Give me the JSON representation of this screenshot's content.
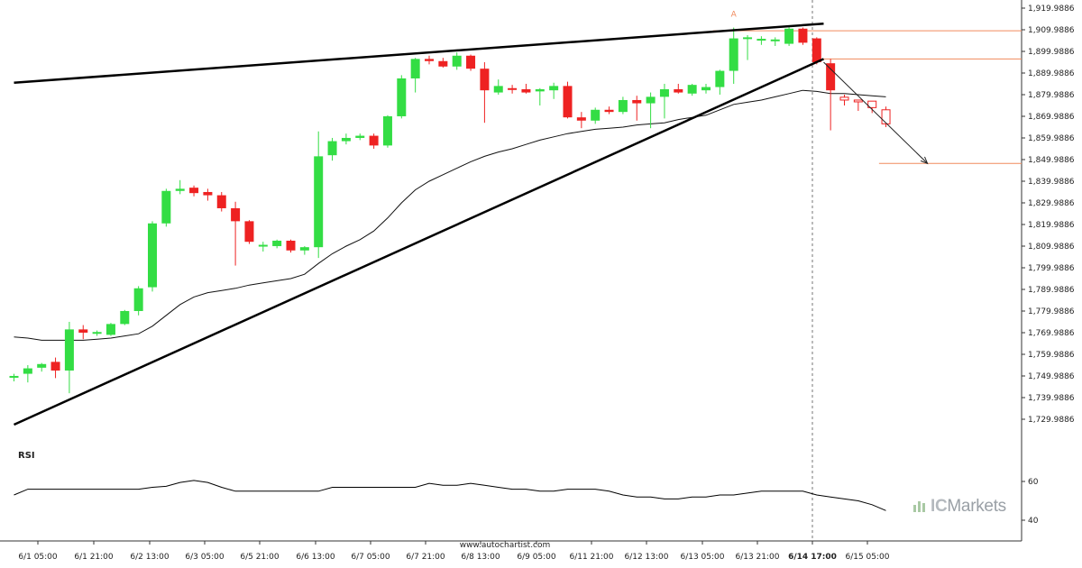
{
  "chart_data": {
    "type": "candlestick",
    "ylim": [
      1723,
      1921
    ],
    "y_ticks": [
      "1,919.9886",
      "1,909.9886",
      "1,899.9886",
      "1,889.9886",
      "1,879.9886",
      "1,869.9886",
      "1,859.9886",
      "1,849.9886",
      "1,839.9886",
      "1,829.9886",
      "1,819.9886",
      "1,809.9886",
      "1,799.9886",
      "1,789.9886",
      "1,779.9886",
      "1,769.9886",
      "1,759.9886",
      "1,749.9886",
      "1,739.9886",
      "1,729.9886"
    ],
    "x_ticks": [
      "6/1 05:00",
      "6/1 21:00",
      "6/2 13:00",
      "6/3 05:00",
      "6/5 21:00",
      "6/6 13:00",
      "6/7 05:00",
      "6/7 21:00",
      "6/8 13:00",
      "6/9 05:00",
      "6/11 21:00",
      "6/12 13:00",
      "6/13 05:00",
      "6/13 21:00",
      "6/14 17:00",
      "6/15 05:00"
    ],
    "highlight_x_tick": "6/14 17:00",
    "candles": [
      {
        "o": 1749.5,
        "h": 1751.0,
        "l": 1747.5,
        "c": 1750.0
      },
      {
        "o": 1751.0,
        "h": 1755.0,
        "l": 1747.0,
        "c": 1753.5
      },
      {
        "o": 1753.8,
        "h": 1756.0,
        "l": 1752.0,
        "c": 1755.5
      },
      {
        "o": 1756.5,
        "h": 1758.5,
        "l": 1749.0,
        "c": 1752.5
      },
      {
        "o": 1752.5,
        "h": 1775.0,
        "l": 1742.0,
        "c": 1771.5
      },
      {
        "o": 1771.5,
        "h": 1773.5,
        "l": 1767.0,
        "c": 1770.0
      },
      {
        "o": 1769.7,
        "h": 1771.0,
        "l": 1768.5,
        "c": 1770.3
      },
      {
        "o": 1769.0,
        "h": 1774.5,
        "l": 1768.5,
        "c": 1774.0
      },
      {
        "o": 1774.0,
        "h": 1780.5,
        "l": 1773.5,
        "c": 1780.0
      },
      {
        "o": 1780.0,
        "h": 1791.5,
        "l": 1778.0,
        "c": 1790.5
      },
      {
        "o": 1791.0,
        "h": 1821.5,
        "l": 1789.0,
        "c": 1820.5
      },
      {
        "o": 1820.5,
        "h": 1836.5,
        "l": 1819.0,
        "c": 1835.5
      },
      {
        "o": 1835.5,
        "h": 1840.5,
        "l": 1834.0,
        "c": 1836.5
      },
      {
        "o": 1837.0,
        "h": 1838.0,
        "l": 1833.0,
        "c": 1834.5
      },
      {
        "o": 1835.0,
        "h": 1836.5,
        "l": 1831.0,
        "c": 1833.5
      },
      {
        "o": 1833.5,
        "h": 1835.0,
        "l": 1826.0,
        "c": 1827.5
      },
      {
        "o": 1827.5,
        "h": 1830.5,
        "l": 1801.0,
        "c": 1821.5
      },
      {
        "o": 1821.5,
        "h": 1822.0,
        "l": 1811.0,
        "c": 1812.0
      },
      {
        "o": 1810.0,
        "h": 1812.0,
        "l": 1807.5,
        "c": 1810.6
      },
      {
        "o": 1810.0,
        "h": 1813.0,
        "l": 1809.0,
        "c": 1812.5
      },
      {
        "o": 1812.5,
        "h": 1813.0,
        "l": 1807.0,
        "c": 1808.0
      },
      {
        "o": 1808.0,
        "h": 1810.0,
        "l": 1806.0,
        "c": 1809.5
      },
      {
        "o": 1809.5,
        "h": 1863.0,
        "l": 1804.5,
        "c": 1851.5
      },
      {
        "o": 1852.0,
        "h": 1860.0,
        "l": 1849.5,
        "c": 1858.5
      },
      {
        "o": 1858.5,
        "h": 1862.0,
        "l": 1857.0,
        "c": 1860.0
      },
      {
        "o": 1860.0,
        "h": 1862.0,
        "l": 1859.0,
        "c": 1861.0
      },
      {
        "o": 1861.0,
        "h": 1862.0,
        "l": 1855.0,
        "c": 1856.5
      },
      {
        "o": 1856.5,
        "h": 1870.5,
        "l": 1855.5,
        "c": 1870.0
      },
      {
        "o": 1870.0,
        "h": 1889.0,
        "l": 1869.0,
        "c": 1887.5
      },
      {
        "o": 1887.5,
        "h": 1897.0,
        "l": 1881.0,
        "c": 1896.5
      },
      {
        "o": 1896.5,
        "h": 1898.0,
        "l": 1894.0,
        "c": 1895.5
      },
      {
        "o": 1895.5,
        "h": 1897.0,
        "l": 1892.5,
        "c": 1893.0
      },
      {
        "o": 1893.0,
        "h": 1899.5,
        "l": 1891.5,
        "c": 1898.0
      },
      {
        "o": 1898.0,
        "h": 1898.5,
        "l": 1891.0,
        "c": 1892.0
      },
      {
        "o": 1892.0,
        "h": 1895.0,
        "l": 1867.0,
        "c": 1882.0
      },
      {
        "o": 1881.0,
        "h": 1887.0,
        "l": 1880.0,
        "c": 1884.0
      },
      {
        "o": 1883.0,
        "h": 1884.5,
        "l": 1880.5,
        "c": 1882.5
      },
      {
        "o": 1882.5,
        "h": 1885.0,
        "l": 1880.5,
        "c": 1881.0
      },
      {
        "o": 1881.5,
        "h": 1883.0,
        "l": 1875.0,
        "c": 1882.5
      },
      {
        "o": 1882.0,
        "h": 1885.5,
        "l": 1878.0,
        "c": 1884.0
      },
      {
        "o": 1884.0,
        "h": 1886.0,
        "l": 1869.0,
        "c": 1869.5
      },
      {
        "o": 1869.5,
        "h": 1872.0,
        "l": 1864.5,
        "c": 1868.0
      },
      {
        "o": 1868.0,
        "h": 1874.0,
        "l": 1866.5,
        "c": 1873.0
      },
      {
        "o": 1873.0,
        "h": 1874.5,
        "l": 1871.0,
        "c": 1872.0
      },
      {
        "o": 1872.0,
        "h": 1879.0,
        "l": 1871.0,
        "c": 1877.5
      },
      {
        "o": 1877.5,
        "h": 1879.5,
        "l": 1868.0,
        "c": 1876.0
      },
      {
        "o": 1876.0,
        "h": 1881.0,
        "l": 1864.5,
        "c": 1879.0
      },
      {
        "o": 1879.0,
        "h": 1885.0,
        "l": 1869.0,
        "c": 1882.5
      },
      {
        "o": 1882.5,
        "h": 1885.0,
        "l": 1880.5,
        "c": 1881.0
      },
      {
        "o": 1880.5,
        "h": 1885.0,
        "l": 1879.5,
        "c": 1884.5
      },
      {
        "o": 1882.0,
        "h": 1885.0,
        "l": 1880.5,
        "c": 1883.5
      },
      {
        "o": 1883.5,
        "h": 1891.5,
        "l": 1880.0,
        "c": 1891.0
      },
      {
        "o": 1891.0,
        "h": 1911.0,
        "l": 1885.0,
        "c": 1906.0
      },
      {
        "o": 1906.0,
        "h": 1907.5,
        "l": 1896.0,
        "c": 1906.5
      },
      {
        "o": 1905.5,
        "h": 1907.0,
        "l": 1903.0,
        "c": 1905.8
      },
      {
        "o": 1905.0,
        "h": 1906.5,
        "l": 1902.5,
        "c": 1905.5
      },
      {
        "o": 1903.5,
        "h": 1911.5,
        "l": 1902.5,
        "c": 1910.5
      },
      {
        "o": 1910.5,
        "h": 1911.0,
        "l": 1903.0,
        "c": 1904.0
      },
      {
        "o": 1906.0,
        "h": 1906.5,
        "l": 1894.0,
        "c": 1895.0
      },
      {
        "o": 1894.5,
        "h": 1896.5,
        "l": 1863.5,
        "c": 1882.0
      },
      {
        "o": 1877.5,
        "h": 1880.0,
        "l": 1875.0,
        "c": 1878.8
      },
      {
        "o": 1877.0,
        "h": 1877.5,
        "l": 1872.5,
        "c": 1877.5
      },
      {
        "o": 1874.0,
        "h": 1877.0,
        "l": 1871.5,
        "c": 1877.0
      },
      {
        "o": 1873.0,
        "h": 1874.5,
        "l": 1865.0,
        "c": 1866.5
      }
    ],
    "projected_from_index": 59,
    "moving_average": [
      1768,
      1767.5,
      1766.5,
      1766.5,
      1766.5,
      1766.5,
      1767,
      1767.5,
      1768.5,
      1769.5,
      1773,
      1778,
      1783,
      1786.5,
      1788.5,
      1789.5,
      1790.5,
      1792,
      1793,
      1794,
      1795,
      1797,
      1802,
      1806.5,
      1810,
      1813,
      1817,
      1823,
      1830,
      1836,
      1840,
      1843,
      1846,
      1849,
      1851.5,
      1853.5,
      1855,
      1857,
      1859,
      1860.5,
      1862,
      1863,
      1864,
      1864.5,
      1865,
      1866,
      1866.5,
      1867,
      1868.5,
      1869.5,
      1870.5,
      1873,
      1875.5,
      1876.5,
      1877.5,
      1879,
      1880.5,
      1882,
      1881.5,
      1880.5,
      1880.5,
      1880,
      1879.5,
      1879
    ],
    "pattern_lines": [
      {
        "x1": 0,
        "y1": 1885.5,
        "x2": 58.5,
        "y2": 1912.8
      },
      {
        "x1": 0,
        "y1": 1727.5,
        "x2": 58.5,
        "y2": 1896.5
      }
    ],
    "forecast_arrow": {
      "x1": 58.5,
      "y1": 1895.0,
      "x2": 66.0,
      "y2": 1848.2
    },
    "levels": [
      {
        "y": 1909.5,
        "x_from": 50.5
      },
      {
        "y": 1896.5,
        "x_from": 58.5
      },
      {
        "y": 1848.2,
        "x_from": 62.5
      }
    ],
    "marker_label": "A",
    "marker_index": 52,
    "rsi": {
      "label": "RSI",
      "ylim": [
        36,
        70
      ],
      "ticks": [
        "60",
        "40"
      ],
      "values": [
        53,
        56,
        56,
        56,
        56,
        56,
        56,
        56,
        56,
        56,
        57,
        57.5,
        59.5,
        60.5,
        59.5,
        57,
        55,
        55,
        55,
        55,
        55,
        55,
        55,
        57,
        57,
        57,
        57,
        57,
        57,
        57,
        59,
        58,
        58,
        59,
        58,
        57,
        56,
        56,
        55,
        55,
        56,
        56,
        56,
        55,
        53,
        52,
        52,
        51,
        51,
        52,
        52,
        53,
        53,
        54,
        55,
        55,
        55,
        55,
        53,
        52,
        51,
        50,
        48,
        45
      ],
      "start_index": 0
    }
  },
  "footer_text": "www.autochartist.com",
  "watermark": {
    "prefix": "IC",
    "rest": "Markets"
  },
  "colors": {
    "up": "#33dd44",
    "down": "#ee2222",
    "level": "#f08a5d",
    "axis": "#555555"
  }
}
